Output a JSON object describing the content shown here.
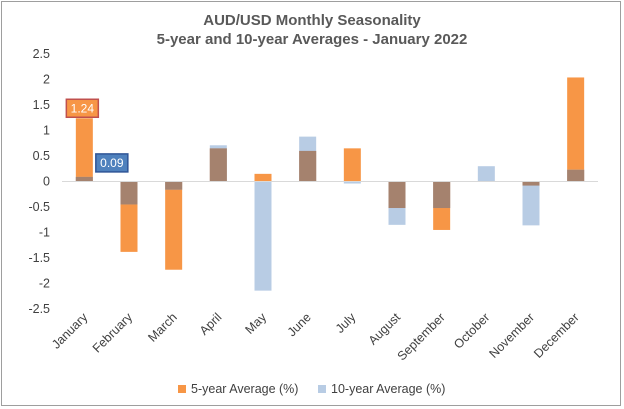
{
  "chart_data": {
    "type": "bar",
    "title": "AUD/USD Monthly Seasonality",
    "subtitle": "5-year and 10-year Averages - January 2022",
    "categories": [
      "January",
      "February",
      "March",
      "April",
      "May",
      "June",
      "July",
      "August",
      "September",
      "October",
      "November",
      "December"
    ],
    "series": [
      {
        "name": "5-year Average (%)",
        "color": "#F79646",
        "values": [
          1.24,
          -1.38,
          -1.73,
          0.65,
          0.15,
          0.6,
          0.65,
          -0.52,
          -0.95,
          0.0,
          -0.08,
          2.04
        ]
      },
      {
        "name": "10-year Average (%)",
        "color": "#B8CCE4",
        "values": [
          0.09,
          -0.45,
          -0.16,
          0.71,
          -2.14,
          0.88,
          -0.04,
          -0.85,
          -0.52,
          0.3,
          -0.86,
          0.23
        ]
      }
    ],
    "overlap_color": "#A5826E",
    "ylim": [
      -2.5,
      2.5
    ],
    "yticks": [
      "2.5",
      "2",
      "1.5",
      "1",
      "0.5",
      "0",
      "-0.5",
      "-1",
      "-1.5",
      "-2",
      "-2.5"
    ],
    "grid": false,
    "legend": "bottom",
    "data_labels": [
      {
        "series": 0,
        "category": "January",
        "text": "1.24",
        "fill": "#F79646",
        "border": "#C0504D"
      },
      {
        "series": 1,
        "category": "January",
        "text": "0.09",
        "fill": "#4F81BD",
        "border": "#2F5597"
      }
    ]
  }
}
